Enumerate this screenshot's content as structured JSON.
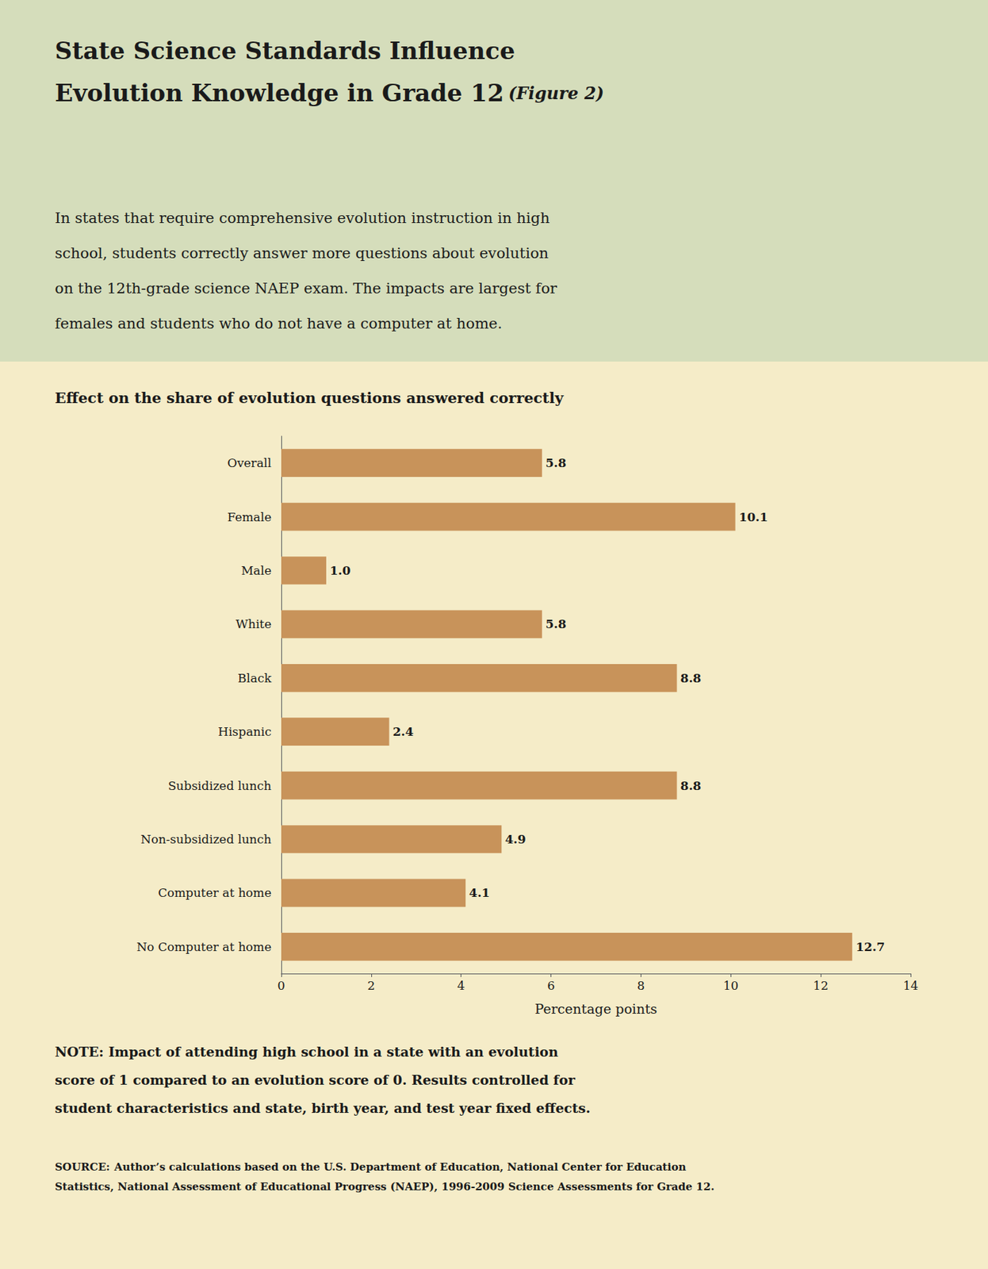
{
  "chart_data": {
    "type": "bar",
    "orientation": "horizontal",
    "title": [
      "State Science Standards Influence",
      "Evolution Knowledge in Grade 12"
    ],
    "figure_label": "(Figure 2)",
    "subtitle": [
      "In states that require comprehensive evolution instruction in high",
      "school, students correctly answer more questions about evolution",
      "on the 12th-grade science NAEP exam. The impacts are largest for",
      "females and students who do not have a computer at home."
    ],
    "chart_title": "Effect on the share of evolution questions answered correctly",
    "categories": [
      "Overall",
      "Female",
      "Male",
      "White",
      "Black",
      "Hispanic",
      "Subsidized lunch",
      "Non-subsidized lunch",
      "Computer at home",
      "No Computer at home"
    ],
    "values": [
      5.8,
      10.1,
      1.0,
      5.8,
      8.8,
      2.4,
      8.8,
      4.9,
      4.1,
      12.7
    ],
    "value_labels": [
      "5.8",
      "10.1",
      "1.0",
      "5.8",
      "8.8",
      "2.4",
      "8.8",
      "4.9",
      "4.1",
      "12.7"
    ],
    "data_labels": true,
    "color": "#C8935A",
    "xlabel": "Percentage points",
    "xlim": [
      0,
      14
    ],
    "xticks": [
      0,
      2,
      4,
      6,
      8,
      10,
      12,
      14
    ],
    "grid": false,
    "notes": [
      "NOTE: Impact of attending high school in a state with an evolution",
      "score of 1 compared to an evolution score of 0. Results controlled for",
      "student characteristics and state, birth year, and test year fixed effects."
    ],
    "source_label": "SOURCE:",
    "source": [
      "Author’s calculations based on the U.S. Department of Education, National Center for Education",
      "Statistics, National Assessment of Educational Progress (NAEP), 1996-2009 Science Assessments for Grade 12."
    ]
  }
}
